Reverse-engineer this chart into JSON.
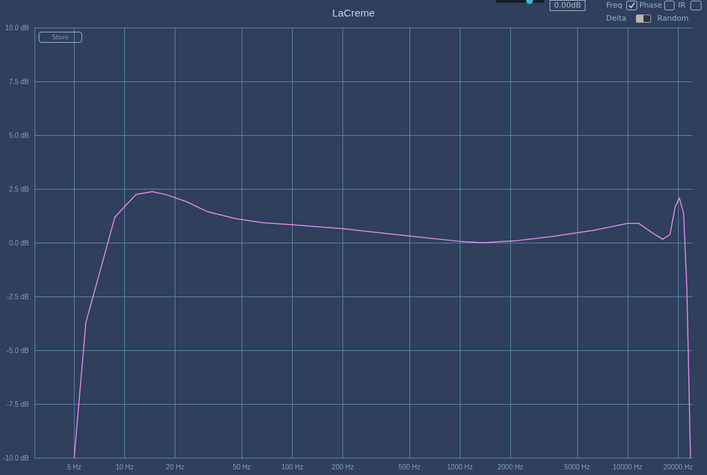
{
  "chart_data": {
    "type": "line",
    "title": "LaCreme",
    "x": [
      5,
      5.87,
      8.75,
      11.7,
      14.6,
      17.6,
      23.5,
      31.2,
      45.6,
      66.5,
      100,
      207,
      443,
      1000,
      1380,
      2220,
      3560,
      6300,
      10000,
      11640,
      14060,
      16220,
      17900,
      19230,
      20380,
      21600,
      22600,
      23730
    ],
    "series": [
      {
        "color": "#e08ce8",
        "values": [
          -10,
          -3.72,
          1.19,
          2.24,
          2.37,
          2.24,
          1.9,
          1.44,
          1.12,
          0.93,
          0.83,
          0.64,
          0.35,
          0.06,
          0,
          0.1,
          0.29,
          0.58,
          0.9,
          0.9,
          0.45,
          0.16,
          0.38,
          1.67,
          2.08,
          1.35,
          -2.18,
          -10
        ]
      }
    ],
    "log": "x",
    "xlim": [
      2.9,
      24400
    ],
    "xticks": [
      {
        "value": 5,
        "label": "5 Hz"
      },
      {
        "value": 10,
        "label": "10 Hz"
      },
      {
        "value": 20,
        "label": "20 Hz"
      },
      {
        "value": 50,
        "label": "50 Hz"
      },
      {
        "value": 100,
        "label": "100 Hz"
      },
      {
        "value": 200,
        "label": "200 Hz"
      },
      {
        "value": 500,
        "label": "500 Hz"
      },
      {
        "value": 1000,
        "label": "1000 Hz"
      },
      {
        "value": 2000,
        "label": "2000 Hz"
      },
      {
        "value": 5000,
        "label": "5000 Hz"
      },
      {
        "value": 10000,
        "label": "10000 Hz"
      },
      {
        "value": 20000,
        "label": "20000 Hz"
      }
    ],
    "ylim": [
      -10,
      10
    ],
    "yticks": [
      {
        "value": -10,
        "label": "-10.0 dB"
      },
      {
        "value": -7.5,
        "label": "-7.5 dB"
      },
      {
        "value": -5,
        "label": "-5.0 dB"
      },
      {
        "value": -2.5,
        "label": "-2.5 dB"
      },
      {
        "value": 0,
        "label": "0.0 dB"
      },
      {
        "value": 2.5,
        "label": "2.5 dB"
      },
      {
        "value": 5,
        "label": "5.0 dB"
      },
      {
        "value": 7.5,
        "label": "7.5 dB"
      },
      {
        "value": 10,
        "label": "10.0 dB"
      }
    ],
    "grid": true,
    "marker": "none",
    "line_style": "solid",
    "annotations": [
      "Store",
      "0.00dB",
      "Freq",
      "Phase",
      "IR",
      "Delta",
      "Random"
    ]
  }
}
